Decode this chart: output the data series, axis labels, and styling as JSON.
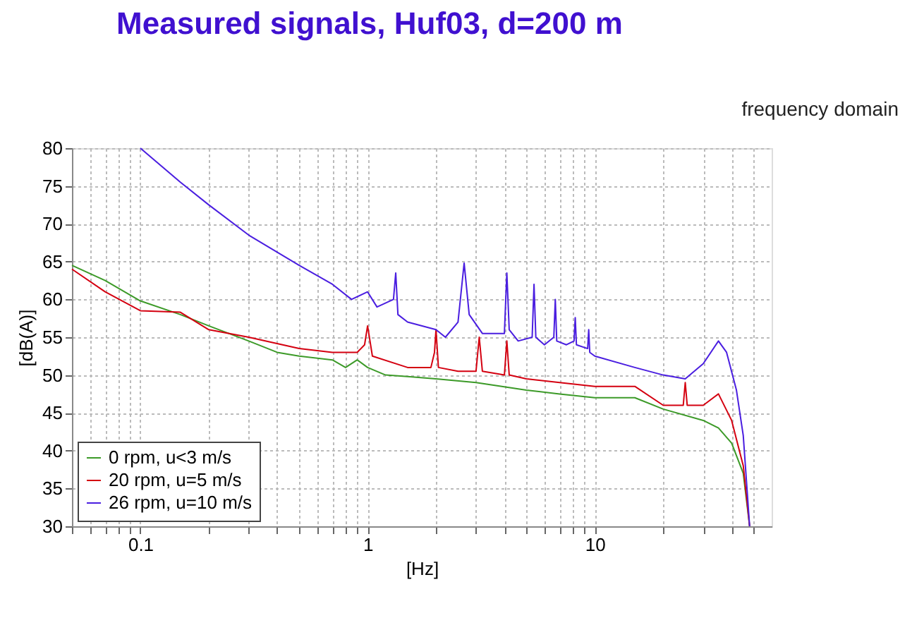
{
  "chart_data": {
    "type": "line",
    "title": "Measured signals, Huf03, d=200 m",
    "subtitle": "frequency domain",
    "xlabel": "[Hz]",
    "ylabel": "[dB(A)]",
    "log": "x",
    "xlim": [
      0.05,
      60
    ],
    "ylim": [
      30,
      80
    ],
    "xticks": [
      {
        "value": 0.05,
        "label": null
      },
      {
        "value": 0.06,
        "label": null
      },
      {
        "value": 0.07,
        "label": null
      },
      {
        "value": 0.08,
        "label": null
      },
      {
        "value": 0.09,
        "label": null
      },
      0.1,
      {
        "value": 0.2,
        "label": null
      },
      {
        "value": 0.3,
        "label": null
      },
      {
        "value": 0.4,
        "label": null
      },
      {
        "value": 0.5,
        "label": null
      },
      {
        "value": 0.6,
        "label": null
      },
      {
        "value": 0.7,
        "label": null
      },
      {
        "value": 0.8,
        "label": null
      },
      {
        "value": 0.9,
        "label": null
      },
      1,
      {
        "value": 2,
        "label": null
      },
      {
        "value": 3,
        "label": null
      },
      {
        "value": 4,
        "label": null
      },
      {
        "value": 5,
        "label": null
      },
      {
        "value": 6,
        "label": null
      },
      {
        "value": 7,
        "label": null
      },
      {
        "value": 8,
        "label": null
      },
      {
        "value": 9,
        "label": null
      },
      10,
      {
        "value": 20,
        "label": null
      },
      {
        "value": 30,
        "label": null
      },
      {
        "value": 40,
        "label": null
      },
      {
        "value": 50,
        "label": null
      }
    ],
    "yticks": [
      30,
      35,
      40,
      45,
      50,
      55,
      60,
      65,
      70,
      75,
      80
    ],
    "grid": true,
    "legend": "bottom left",
    "marker": "none",
    "line_style": "solid",
    "series": [
      {
        "name": "0 rpm, u<3 m/s",
        "color": "#3c9a28",
        "x": [
          0.05,
          0.07,
          0.1,
          0.15,
          0.2,
          0.3,
          0.4,
          0.5,
          0.7,
          0.8,
          0.9,
          1,
          1.2,
          1.5,
          2,
          3,
          5,
          7,
          10,
          15,
          20,
          30,
          35,
          40,
          45,
          48
        ],
        "values": [
          64.5,
          62.5,
          59.8,
          58,
          56.5,
          54.5,
          53,
          52.5,
          52,
          51,
          52,
          51,
          50,
          49.8,
          49.5,
          49,
          48,
          47.5,
          47,
          47,
          45.5,
          44,
          43,
          41,
          37,
          30
        ]
      },
      {
        "name": "20 rpm, u=5 m/s",
        "color": "#d40010",
        "x": [
          0.05,
          0.07,
          0.1,
          0.15,
          0.2,
          0.3,
          0.5,
          0.7,
          0.9,
          0.97,
          1.0,
          1.05,
          1.5,
          1.9,
          1.97,
          2.0,
          2.05,
          2.5,
          3.0,
          3.1,
          3.2,
          4.0,
          4.1,
          4.2,
          5,
          7,
          10,
          15,
          20,
          24.5,
          25,
          25.5,
          30,
          35,
          40,
          45,
          48
        ],
        "values": [
          64,
          61,
          58.5,
          58.3,
          56,
          55,
          53.5,
          53,
          53,
          54,
          56.5,
          52.5,
          51,
          51,
          53,
          56,
          51,
          50.5,
          50.5,
          55,
          50.5,
          50,
          54.5,
          50,
          49.5,
          49,
          48.5,
          48.5,
          46,
          46,
          49,
          46,
          46,
          47.5,
          44,
          38,
          30
        ]
      },
      {
        "name": "26 rpm, u=10 m/s",
        "color": "#4a1ee0",
        "x": [
          0.1,
          0.15,
          0.2,
          0.3,
          0.5,
          0.7,
          0.85,
          1,
          1.1,
          1.3,
          1.33,
          1.36,
          1.5,
          2,
          2.2,
          2.5,
          2.66,
          2.8,
          3.2,
          4.0,
          4.1,
          4.2,
          4.6,
          5.3,
          5.4,
          5.5,
          6.0,
          6.6,
          6.7,
          6.8,
          7.5,
          8.1,
          8.2,
          8.3,
          9.3,
          9.4,
          9.5,
          10,
          15,
          20,
          25,
          30,
          35,
          38,
          42,
          45,
          48
        ],
        "values": [
          80,
          75.5,
          72.5,
          68.5,
          64.5,
          62,
          60,
          61,
          59,
          60,
          63.5,
          58,
          57,
          56,
          55,
          57,
          64.8,
          58,
          55.5,
          55.5,
          63.5,
          56,
          54.5,
          55,
          62,
          55,
          54,
          55,
          60,
          54.5,
          54,
          54.5,
          57.6,
          54,
          53.5,
          56,
          53,
          52.5,
          51,
          50,
          49.5,
          51.5,
          54.5,
          53,
          48,
          42,
          30
        ]
      }
    ]
  }
}
